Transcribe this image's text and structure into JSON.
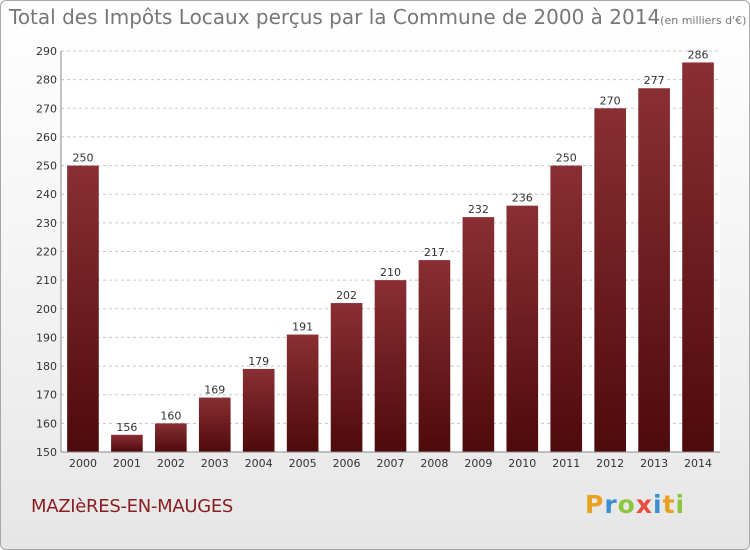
{
  "chart_data": {
    "type": "bar",
    "title": "Total des Impôts Locaux perçus par la Commune de 2000 à 2014",
    "unit": "(en milliers d'€)",
    "categories": [
      "2000",
      "2001",
      "2002",
      "2003",
      "2004",
      "2005",
      "2006",
      "2007",
      "2008",
      "2009",
      "2010",
      "2011",
      "2012",
      "2013",
      "2014"
    ],
    "values": [
      250,
      156,
      160,
      169,
      179,
      191,
      202,
      210,
      217,
      232,
      236,
      250,
      270,
      277,
      286
    ],
    "ylim": [
      150,
      290
    ],
    "yticks": [
      150,
      160,
      170,
      180,
      190,
      200,
      210,
      220,
      230,
      240,
      250,
      260,
      270,
      280,
      290
    ],
    "grid": true,
    "xlabel": "",
    "ylabel": ""
  },
  "commune": "MAZIèRES-EN-MAUGES",
  "logo": {
    "text": "Proxiti",
    "letters": [
      {
        "ch": "P",
        "color": "#e8a020"
      },
      {
        "ch": "r",
        "color": "#3a8fd0"
      },
      {
        "ch": "o",
        "color": "#8cc63f"
      },
      {
        "ch": "x",
        "color": "#e84e3c"
      },
      {
        "ch": "i",
        "color": "#3a8fd0"
      },
      {
        "ch": "t",
        "color": "#e8a020"
      },
      {
        "ch": "i",
        "color": "#8cc63f"
      }
    ]
  },
  "colors": {
    "bar_top": "#8a2f33",
    "bar_bottom": "#4e0a0c",
    "label": "#333333",
    "grid": "#c8c8c8"
  }
}
